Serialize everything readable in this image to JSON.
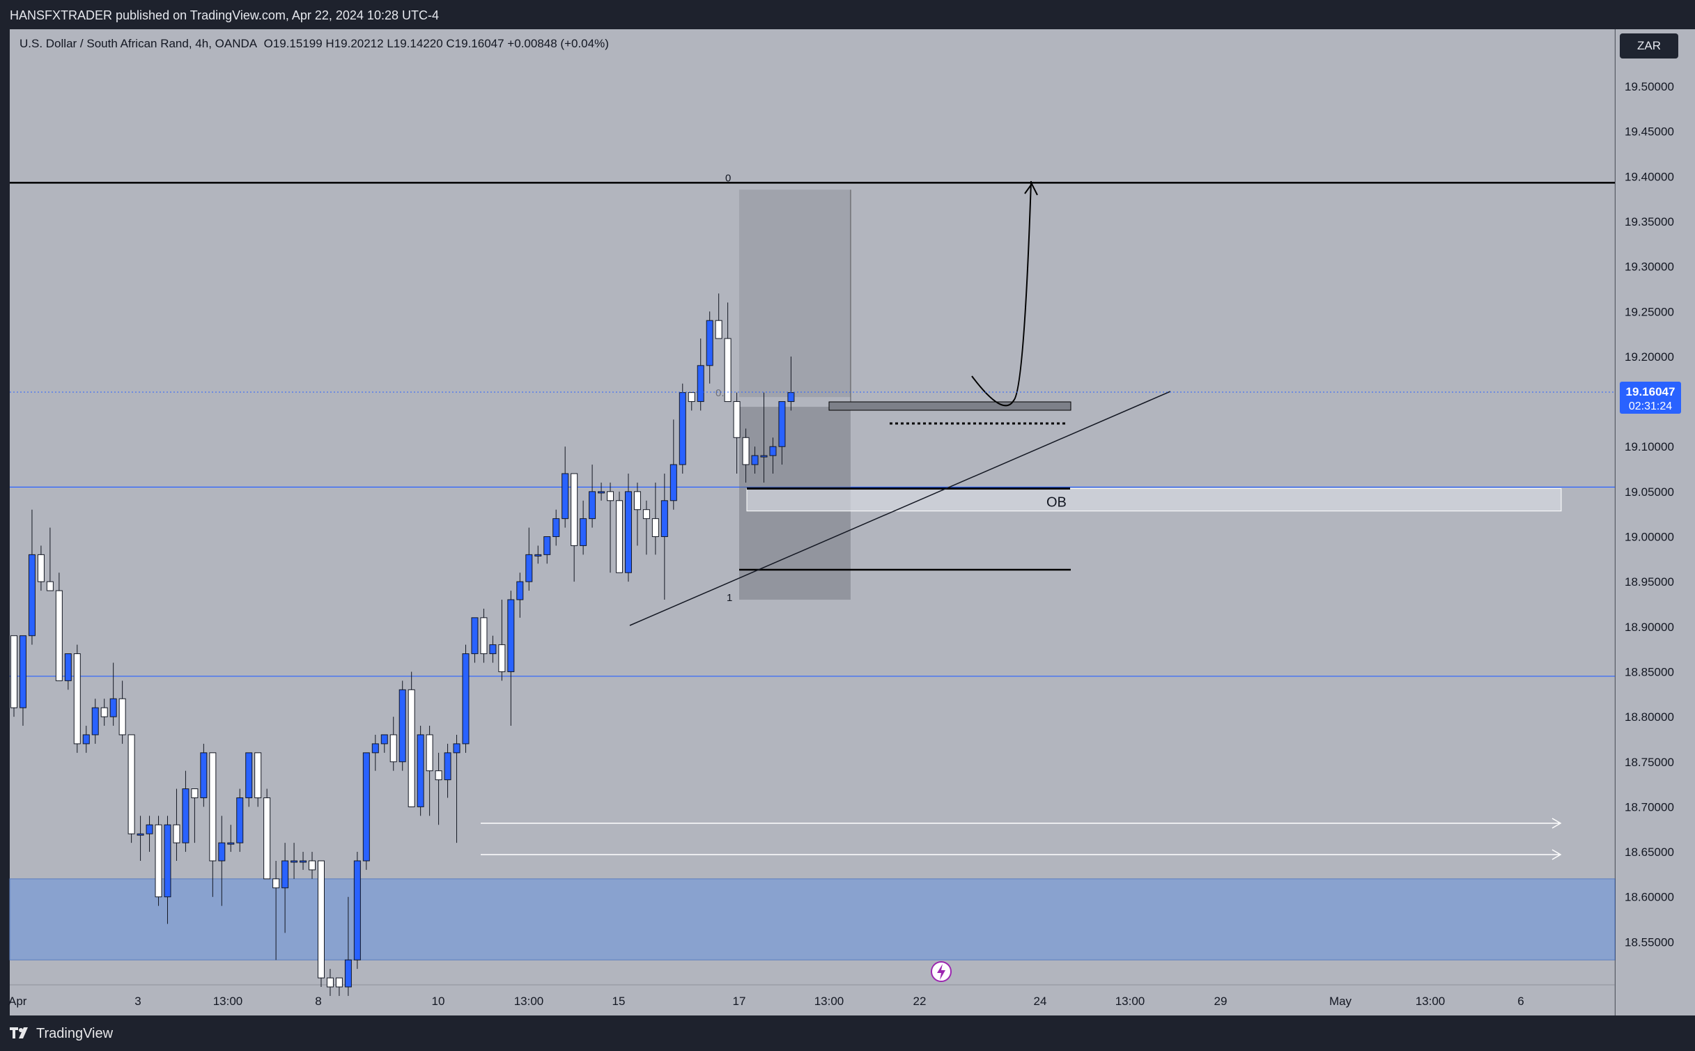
{
  "header": {
    "publish_text": "HANSFXTRADER published on TradingView.com, Apr 22, 2024 10:28 UTC-4"
  },
  "legend": {
    "symbol": "U.S. Dollar / South African Rand, 4h, OANDA",
    "ohlc": "O19.15199  H19.20212  L19.14220  C19.16047  +0.00848 (+0.04%)"
  },
  "currency_badge": "ZAR",
  "price_tag": {
    "price": "19.16047",
    "countdown": "02:31:24"
  },
  "brand": {
    "logo_text": "TradingView"
  },
  "colors": {
    "chart_bg": "#b2b5be",
    "up_candle": "#2962ff",
    "down_candle": "#ffffff",
    "demand_zone": "#89a2cf",
    "line": "#2962ff"
  },
  "chart_data": {
    "type": "candlestick",
    "symbol": "USDZAR",
    "timeframe": "4h",
    "ylim": [
      18.5,
      19.55
    ],
    "y_ticks": [
      "19.50000",
      "19.45000",
      "19.40000",
      "19.35000",
      "19.30000",
      "19.25000",
      "19.20000",
      "19.15000",
      "19.10000",
      "19.05000",
      "19.00000",
      "18.95000",
      "18.90000",
      "18.85000",
      "18.80000",
      "18.75000",
      "18.70000",
      "18.65000",
      "18.60000",
      "18.55000"
    ],
    "x_ticks": [
      "Apr",
      "3",
      "13:00",
      "8",
      "10",
      "13:00",
      "15",
      "17",
      "13:00",
      "22",
      "24",
      "13:00",
      "29",
      "May",
      "13:00",
      "6"
    ],
    "candles": [
      {
        "o": 18.89,
        "h": 18.89,
        "l": 18.8,
        "c": 18.81
      },
      {
        "o": 18.81,
        "h": 18.89,
        "l": 18.79,
        "c": 18.89
      },
      {
        "o": 18.89,
        "h": 19.03,
        "l": 18.88,
        "c": 18.98
      },
      {
        "o": 18.98,
        "h": 18.99,
        "l": 18.94,
        "c": 18.95
      },
      {
        "o": 18.95,
        "h": 19.01,
        "l": 18.94,
        "c": 18.94
      },
      {
        "o": 18.94,
        "h": 18.96,
        "l": 18.84,
        "c": 18.84
      },
      {
        "o": 18.84,
        "h": 18.87,
        "l": 18.83,
        "c": 18.87
      },
      {
        "o": 18.87,
        "h": 18.88,
        "l": 18.76,
        "c": 18.77
      },
      {
        "o": 18.77,
        "h": 18.79,
        "l": 18.76,
        "c": 18.78
      },
      {
        "o": 18.78,
        "h": 18.82,
        "l": 18.77,
        "c": 18.81
      },
      {
        "o": 18.81,
        "h": 18.82,
        "l": 18.79,
        "c": 18.8
      },
      {
        "o": 18.8,
        "h": 18.86,
        "l": 18.79,
        "c": 18.82
      },
      {
        "o": 18.82,
        "h": 18.84,
        "l": 18.77,
        "c": 18.78
      },
      {
        "o": 18.78,
        "h": 18.78,
        "l": 18.66,
        "c": 18.67
      },
      {
        "o": 18.67,
        "h": 18.69,
        "l": 18.64,
        "c": 18.67
      },
      {
        "o": 18.67,
        "h": 18.69,
        "l": 18.65,
        "c": 18.68
      },
      {
        "o": 18.68,
        "h": 18.69,
        "l": 18.59,
        "c": 18.6
      },
      {
        "o": 18.6,
        "h": 18.69,
        "l": 18.57,
        "c": 18.68
      },
      {
        "o": 18.68,
        "h": 18.72,
        "l": 18.64,
        "c": 18.66
      },
      {
        "o": 18.66,
        "h": 18.74,
        "l": 18.65,
        "c": 18.72
      },
      {
        "o": 18.72,
        "h": 18.72,
        "l": 18.66,
        "c": 18.71
      },
      {
        "o": 18.71,
        "h": 18.77,
        "l": 18.7,
        "c": 18.76
      },
      {
        "o": 18.76,
        "h": 18.76,
        "l": 18.6,
        "c": 18.64
      },
      {
        "o": 18.64,
        "h": 18.69,
        "l": 18.59,
        "c": 18.66
      },
      {
        "o": 18.66,
        "h": 18.68,
        "l": 18.65,
        "c": 18.66
      },
      {
        "o": 18.66,
        "h": 18.72,
        "l": 18.65,
        "c": 18.71
      },
      {
        "o": 18.71,
        "h": 18.76,
        "l": 18.7,
        "c": 18.76
      },
      {
        "o": 18.76,
        "h": 18.76,
        "l": 18.7,
        "c": 18.71
      },
      {
        "o": 18.71,
        "h": 18.72,
        "l": 18.62,
        "c": 18.62
      },
      {
        "o": 18.62,
        "h": 18.64,
        "l": 18.53,
        "c": 18.61
      },
      {
        "o": 18.61,
        "h": 18.66,
        "l": 18.56,
        "c": 18.64
      },
      {
        "o": 18.64,
        "h": 18.66,
        "l": 18.62,
        "c": 18.64
      },
      {
        "o": 18.64,
        "h": 18.65,
        "l": 18.63,
        "c": 18.64
      },
      {
        "o": 18.64,
        "h": 18.65,
        "l": 18.62,
        "c": 18.63
      },
      {
        "o": 18.64,
        "h": 18.64,
        "l": 18.5,
        "c": 18.51
      },
      {
        "o": 18.51,
        "h": 18.52,
        "l": 18.49,
        "c": 18.5
      },
      {
        "o": 18.51,
        "h": 18.51,
        "l": 18.49,
        "c": 18.5
      },
      {
        "o": 18.5,
        "h": 18.6,
        "l": 18.49,
        "c": 18.53
      },
      {
        "o": 18.53,
        "h": 18.65,
        "l": 18.52,
        "c": 18.64
      },
      {
        "o": 18.64,
        "h": 18.76,
        "l": 18.63,
        "c": 18.76
      },
      {
        "o": 18.76,
        "h": 18.78,
        "l": 18.74,
        "c": 18.77
      },
      {
        "o": 18.77,
        "h": 18.78,
        "l": 18.76,
        "c": 18.78
      },
      {
        "o": 18.78,
        "h": 18.8,
        "l": 18.74,
        "c": 18.75
      },
      {
        "o": 18.75,
        "h": 18.84,
        "l": 18.74,
        "c": 18.83
      },
      {
        "o": 18.83,
        "h": 18.85,
        "l": 18.7,
        "c": 18.7
      },
      {
        "o": 18.7,
        "h": 18.79,
        "l": 18.69,
        "c": 18.78
      },
      {
        "o": 18.78,
        "h": 18.79,
        "l": 18.69,
        "c": 18.74
      },
      {
        "o": 18.74,
        "h": 18.76,
        "l": 18.68,
        "c": 18.73
      },
      {
        "o": 18.73,
        "h": 18.77,
        "l": 18.71,
        "c": 18.76
      },
      {
        "o": 18.76,
        "h": 18.78,
        "l": 18.66,
        "c": 18.77
      },
      {
        "o": 18.77,
        "h": 18.88,
        "l": 18.76,
        "c": 18.87
      },
      {
        "o": 18.87,
        "h": 18.91,
        "l": 18.86,
        "c": 18.91
      },
      {
        "o": 18.91,
        "h": 18.92,
        "l": 18.86,
        "c": 18.87
      },
      {
        "o": 18.87,
        "h": 18.89,
        "l": 18.86,
        "c": 18.88
      },
      {
        "o": 18.88,
        "h": 18.93,
        "l": 18.84,
        "c": 18.85
      },
      {
        "o": 18.85,
        "h": 18.94,
        "l": 18.79,
        "c": 18.93
      },
      {
        "o": 18.93,
        "h": 18.96,
        "l": 18.91,
        "c": 18.95
      },
      {
        "o": 18.95,
        "h": 19.01,
        "l": 18.94,
        "c": 18.98
      },
      {
        "o": 18.98,
        "h": 18.99,
        "l": 18.97,
        "c": 18.98
      },
      {
        "o": 18.98,
        "h": 19.0,
        "l": 18.97,
        "c": 19.0
      },
      {
        "o": 19.0,
        "h": 19.03,
        "l": 18.99,
        "c": 19.02
      },
      {
        "o": 19.02,
        "h": 19.1,
        "l": 19.01,
        "c": 19.07
      },
      {
        "o": 19.07,
        "h": 19.07,
        "l": 18.95,
        "c": 18.99
      },
      {
        "o": 18.99,
        "h": 19.04,
        "l": 18.98,
        "c": 19.02
      },
      {
        "o": 19.02,
        "h": 19.08,
        "l": 19.01,
        "c": 19.05
      },
      {
        "o": 19.05,
        "h": 19.06,
        "l": 19.04,
        "c": 19.05
      },
      {
        "o": 19.05,
        "h": 19.06,
        "l": 18.96,
        "c": 19.04
      },
      {
        "o": 19.04,
        "h": 19.05,
        "l": 18.96,
        "c": 18.96
      },
      {
        "o": 18.96,
        "h": 19.07,
        "l": 18.95,
        "c": 19.05
      },
      {
        "o": 19.05,
        "h": 19.06,
        "l": 18.99,
        "c": 19.03
      },
      {
        "o": 19.03,
        "h": 19.04,
        "l": 18.98,
        "c": 19.02
      },
      {
        "o": 19.02,
        "h": 19.06,
        "l": 18.98,
        "c": 19.0
      },
      {
        "o": 19.0,
        "h": 19.07,
        "l": 18.93,
        "c": 19.04
      },
      {
        "o": 19.04,
        "h": 19.13,
        "l": 19.03,
        "c": 19.08
      },
      {
        "o": 19.08,
        "h": 19.17,
        "l": 19.07,
        "c": 19.16
      },
      {
        "o": 19.16,
        "h": 19.16,
        "l": 19.14,
        "c": 19.15
      },
      {
        "o": 19.15,
        "h": 19.22,
        "l": 19.14,
        "c": 19.19
      },
      {
        "o": 19.19,
        "h": 19.25,
        "l": 19.17,
        "c": 19.24
      },
      {
        "o": 19.24,
        "h": 19.27,
        "l": 19.22,
        "c": 19.22
      },
      {
        "o": 19.22,
        "h": 19.26,
        "l": 19.15,
        "c": 19.15
      },
      {
        "o": 19.15,
        "h": 19.16,
        "l": 19.07,
        "c": 19.11
      },
      {
        "o": 19.11,
        "h": 19.12,
        "l": 19.06,
        "c": 19.08
      },
      {
        "o": 19.08,
        "h": 19.1,
        "l": 19.07,
        "c": 19.09
      },
      {
        "o": 19.09,
        "h": 19.16,
        "l": 19.06,
        "c": 19.09
      },
      {
        "o": 19.09,
        "h": 19.11,
        "l": 19.07,
        "c": 19.1
      },
      {
        "o": 19.1,
        "h": 19.15,
        "l": 19.08,
        "c": 19.15
      },
      {
        "o": 19.15,
        "h": 19.2,
        "l": 19.14,
        "c": 19.16
      }
    ],
    "fib": {
      "level_0": 19.393,
      "level_05": 19.155,
      "level_1": 18.93,
      "labels": [
        "0",
        "0.5",
        "1"
      ]
    },
    "horizontal_lines": [
      19.393,
      19.055,
      18.845
    ],
    "ob_zone": {
      "label": "OB",
      "top": 19.055,
      "bottom": 19.03
    },
    "demand_zone": {
      "top": 18.62,
      "bottom": 18.53
    },
    "current_price": 19.16047
  }
}
